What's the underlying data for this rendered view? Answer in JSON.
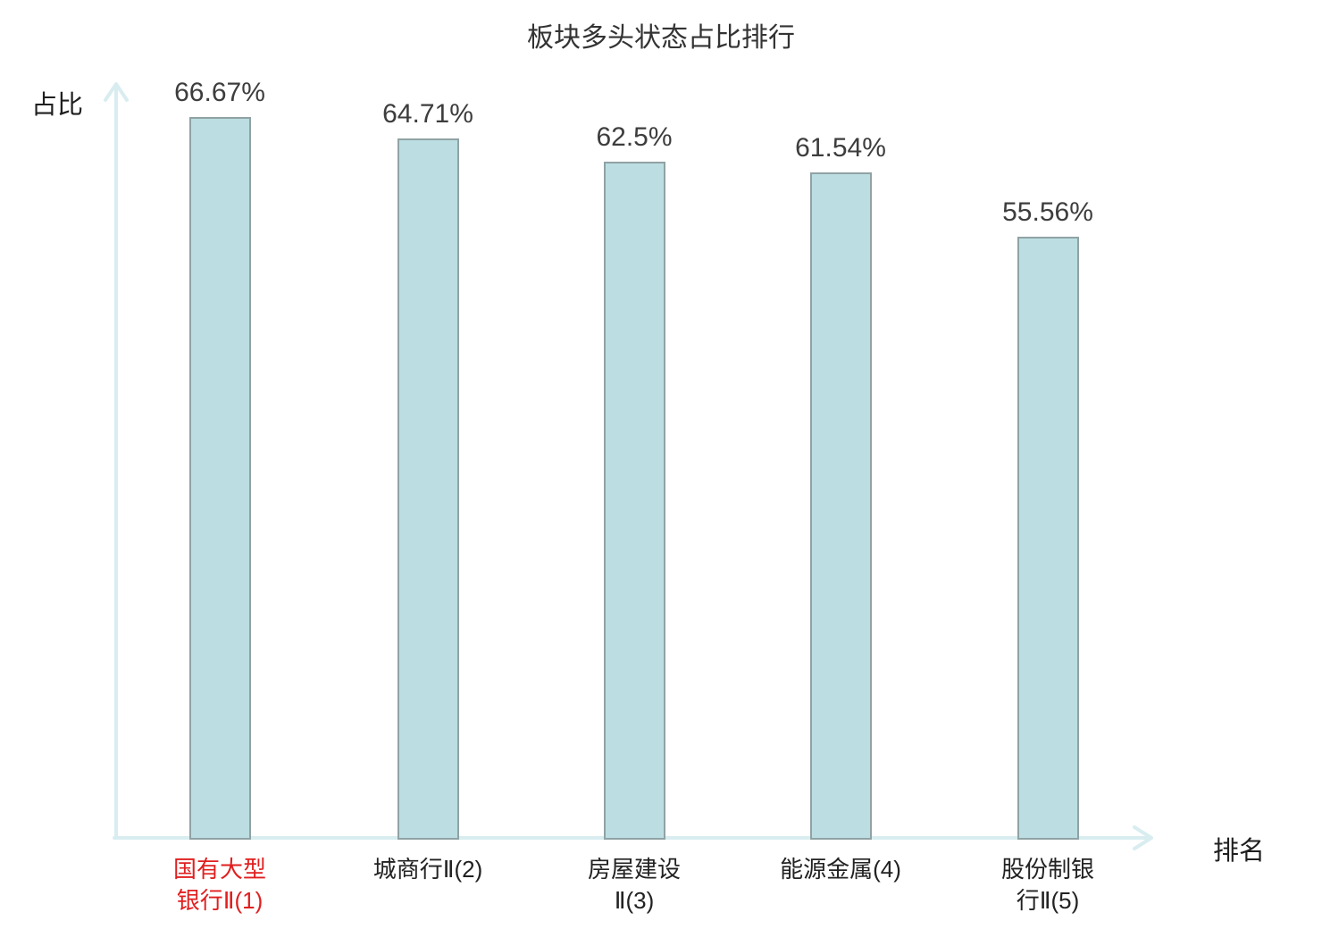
{
  "chart_data": {
    "type": "bar",
    "title": "板块多头状态占比排行",
    "xlabel": "排名",
    "ylabel": "占比",
    "categories": [
      "国有大型银行Ⅱ(1)",
      "城商行Ⅱ(2)",
      "房屋建设Ⅱ(3)",
      "能源金属(4)",
      "股份制银行Ⅱ(5)"
    ],
    "category_lines": [
      [
        "国有大型",
        "银行Ⅱ(1)"
      ],
      [
        "城商行Ⅱ(2)"
      ],
      [
        "房屋建设",
        "Ⅱ(3)"
      ],
      [
        "能源金属(4)"
      ],
      [
        "股份制银",
        "行Ⅱ(5)"
      ]
    ],
    "values": [
      66.67,
      64.71,
      62.5,
      61.54,
      55.56
    ],
    "value_labels": [
      "66.67%",
      "64.71%",
      "62.5%",
      "61.54%",
      "55.56%"
    ],
    "highlight_index": 0,
    "ylim": [
      0,
      70
    ],
    "grid": false,
    "legend": false,
    "colors": {
      "bar_fill": "#bcdee2",
      "bar_border": "#90a2a4",
      "axis": "#d9edf0",
      "title_text": "#333333",
      "value_text": "#3d3d3d",
      "category_text": "#222222",
      "highlight_text": "#e01f1f"
    }
  }
}
